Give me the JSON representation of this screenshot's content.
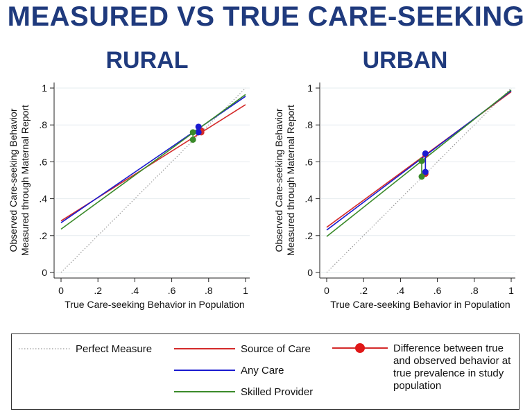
{
  "main_title": "MEASURED VS TRUE CARE-SEEKING",
  "colors": {
    "title": "#1f3a7d",
    "source_of_care": "#d42a2a",
    "any_care": "#1a1ad0",
    "skilled_provider": "#3a8a2a",
    "perfect": "#9a9a9a"
  },
  "legend": {
    "perfect": "Perfect Measure",
    "source": "Source of Care",
    "any": "Any Care",
    "skilled": "Skilled Provider",
    "difference": "Difference between true and observed behavior at true prevalence in study population"
  },
  "chart_data": [
    {
      "type": "line",
      "title": "RURAL",
      "xlabel": "True Care-seeking Behavior in Population",
      "ylabel_line1": "Observed Care-seeking Behavior",
      "ylabel_line2": "Measured through Maternal Report",
      "xlim": [
        0,
        1
      ],
      "ylim": [
        0,
        1
      ],
      "xticks": [
        "0",
        ".2",
        ".4",
        ".6",
        ".8",
        "1"
      ],
      "yticks": [
        "0",
        ".2",
        ".4",
        ".6",
        ".8",
        "1"
      ],
      "grid": true,
      "series": [
        {
          "key": "perfect",
          "x": [
            0,
            1
          ],
          "y": [
            0,
            1
          ]
        },
        {
          "key": "source_of_care",
          "x": [
            0,
            1
          ],
          "y": [
            0.28,
            0.91
          ]
        },
        {
          "key": "any_care",
          "x": [
            0,
            1
          ],
          "y": [
            0.27,
            0.955
          ]
        },
        {
          "key": "skilled_provider",
          "x": [
            0,
            1
          ],
          "y": [
            0.235,
            0.965
          ]
        }
      ],
      "differences": [
        {
          "key": "source_of_care",
          "x": 0.76,
          "y_true": 0.76,
          "y_observed": 0.77
        },
        {
          "key": "any_care",
          "x": 0.745,
          "y_true": 0.76,
          "y_observed": 0.79
        },
        {
          "key": "skilled_provider",
          "x": 0.715,
          "y_true": 0.72,
          "y_observed": 0.76
        }
      ]
    },
    {
      "type": "line",
      "title": "URBAN",
      "xlabel": "True Care-seeking Behavior in Population",
      "ylabel_line1": "Observed Care-seeking Behavior",
      "ylabel_line2": "Measured through Maternal Report",
      "xlim": [
        0,
        1
      ],
      "ylim": [
        0,
        1
      ],
      "xticks": [
        "0",
        ".2",
        ".4",
        ".6",
        ".8",
        "1"
      ],
      "yticks": [
        "0",
        ".2",
        ".4",
        ".6",
        ".8",
        "1"
      ],
      "grid": true,
      "series": [
        {
          "key": "perfect",
          "x": [
            0,
            1
          ],
          "y": [
            0,
            1
          ]
        },
        {
          "key": "source_of_care",
          "x": [
            0,
            1
          ],
          "y": [
            0.245,
            0.98
          ]
        },
        {
          "key": "any_care",
          "x": [
            0,
            1
          ],
          "y": [
            0.23,
            0.985
          ]
        },
        {
          "key": "skilled_provider",
          "x": [
            0,
            1
          ],
          "y": [
            0.195,
            0.99
          ]
        }
      ],
      "differences": [
        {
          "key": "source_of_care",
          "x": 0.535,
          "y_true": 0.535,
          "y_observed": 0.64
        },
        {
          "key": "any_care",
          "x": 0.535,
          "y_true": 0.545,
          "y_observed": 0.645
        },
        {
          "key": "skilled_provider",
          "x": 0.515,
          "y_true": 0.52,
          "y_observed": 0.605
        }
      ]
    }
  ]
}
